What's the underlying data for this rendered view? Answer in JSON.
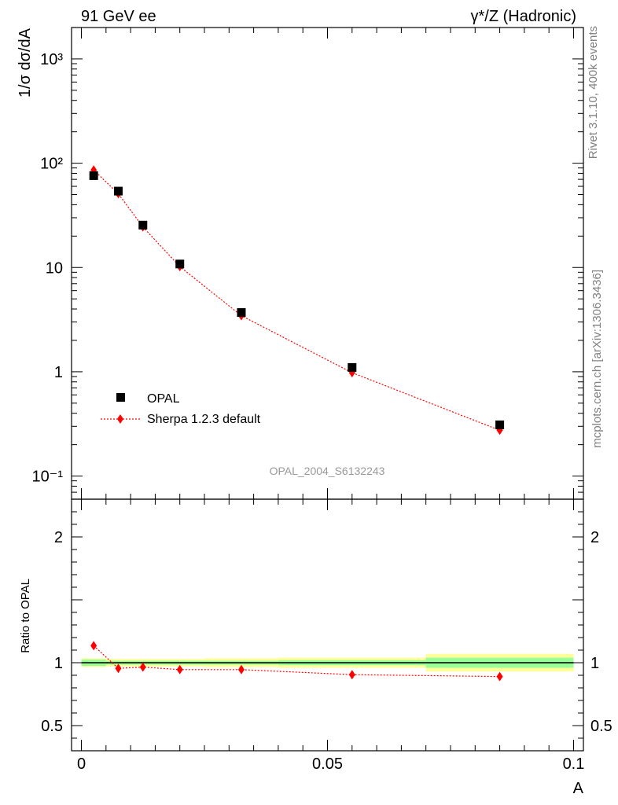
{
  "header": {
    "left": "91 GeV ee",
    "right": "γ*/Z (Hadronic)"
  },
  "side_labels": {
    "rivet": "Rivet 3.1.10,  400k events",
    "mcplots": "mcplots.cern.ch [arXiv:1306.3436]"
  },
  "watermark": "OPAL_2004_S6132243",
  "legend": {
    "position": "lower-left",
    "data_label": "OPAL",
    "mc_label": "Sherpa 1.2.3 default"
  },
  "colors": {
    "data": "#000000",
    "mc": "#ff0000",
    "band_inner": "#99ff99",
    "band_outer": "#ffff99",
    "watermark": "#999999"
  },
  "chart_data": [
    {
      "type": "scatter",
      "panel": "main",
      "ylabel": "1/σ dσ/dA",
      "yscale": "log",
      "ylim": [
        0.06,
        2000
      ],
      "xlim": [
        -0.002,
        0.102
      ],
      "yticks": [
        "10⁻¹",
        "1",
        "10",
        "10²",
        "10³"
      ],
      "series": [
        {
          "name": "OPAL",
          "marker": "square",
          "x": [
            0.0025,
            0.0075,
            0.0125,
            0.02,
            0.0325,
            0.055,
            0.085
          ],
          "y": [
            76,
            54,
            25.5,
            10.8,
            3.7,
            1.1,
            0.31
          ]
        },
        {
          "name": "Sherpa 1.2.3 default",
          "marker": "diamond",
          "line": "dotted",
          "x": [
            0.0025,
            0.0075,
            0.0125,
            0.02,
            0.0325,
            0.055,
            0.085
          ],
          "y": [
            86,
            51,
            24.5,
            10.2,
            3.45,
            0.98,
            0.275
          ]
        }
      ]
    },
    {
      "type": "scatter",
      "panel": "ratio",
      "ylabel": "Ratio to OPAL",
      "xlabel": "A",
      "ylim": [
        0.3,
        2.3
      ],
      "xlim": [
        -0.002,
        0.102
      ],
      "xticks": [
        "0",
        "0.05",
        "0.1"
      ],
      "yticks": [
        "0.5",
        "1",
        "2"
      ],
      "series": [
        {
          "name": "Sherpa 1.2.3 default",
          "x": [
            0.0025,
            0.0075,
            0.0125,
            0.02,
            0.0325,
            0.055,
            0.085
          ],
          "y": [
            1.135,
            0.955,
            0.965,
            0.945,
            0.945,
            0.905,
            0.89
          ]
        }
      ],
      "uncertainty_bands": [
        {
          "x0": 0.0,
          "x1": 0.005,
          "inner": 0.025,
          "outer": 0.035
        },
        {
          "x0": 0.005,
          "x1": 0.01,
          "inner": 0.015,
          "outer": 0.03
        },
        {
          "x0": 0.01,
          "x1": 0.015,
          "inner": 0.015,
          "outer": 0.03
        },
        {
          "x0": 0.015,
          "x1": 0.025,
          "inner": 0.015,
          "outer": 0.03
        },
        {
          "x0": 0.025,
          "x1": 0.04,
          "inner": 0.015,
          "outer": 0.035
        },
        {
          "x0": 0.04,
          "x1": 0.07,
          "inner": 0.02,
          "outer": 0.04
        },
        {
          "x0": 0.07,
          "x1": 0.1,
          "inner": 0.04,
          "outer": 0.07
        }
      ]
    }
  ]
}
